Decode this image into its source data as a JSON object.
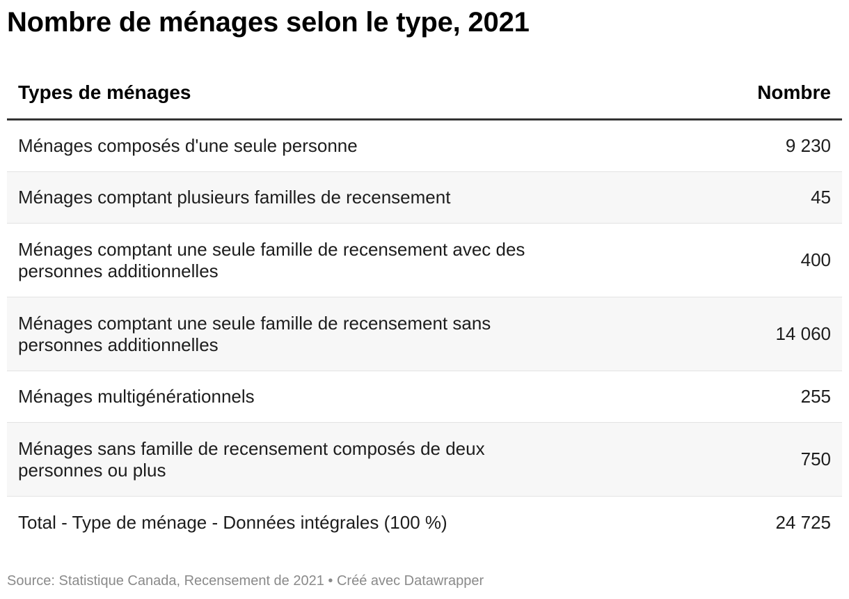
{
  "chart_data": {
    "type": "table",
    "title": "Nombre de ménages selon le type, 2021",
    "columns": [
      "Types de ménages",
      "Nombre"
    ],
    "rows": [
      {
        "label": "Ménages composés d'une seule personne",
        "value": "9 230"
      },
      {
        "label": "Ménages comptant plusieurs familles de recensement",
        "value": "45"
      },
      {
        "label": "Ménages comptant une seule famille de recensement avec des personnes additionnelles",
        "value": "400"
      },
      {
        "label": "Ménages comptant une seule famille de recensement sans personnes additionnelles",
        "value": "14 060"
      },
      {
        "label": "Ménages multigénérationnels",
        "value": "255"
      },
      {
        "label": "Ménages sans famille de recensement composés de deux personnes ou plus",
        "value": "750"
      },
      {
        "label": "Total - Type de ménage - Données intégrales (100 %)",
        "value": "24 725"
      }
    ],
    "source": "Source: Statistique Canada, Recensement de 2021 • Créé avec Datawrapper"
  },
  "colors": {
    "text": "#1d1d1d",
    "header_rule": "#333333",
    "row_alt": "#f7f7f7",
    "source": "#8a8a8a"
  }
}
